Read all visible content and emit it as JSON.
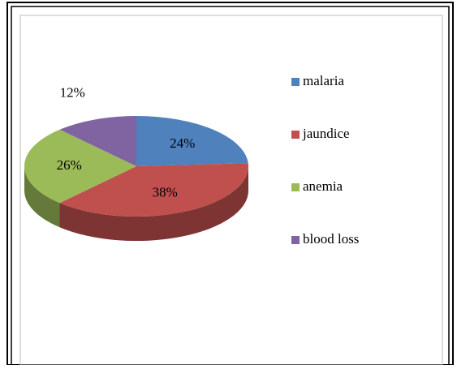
{
  "chart_data": {
    "type": "pie",
    "categories": [
      "malaria",
      "jaundice",
      "anemia",
      "blood loss"
    ],
    "values": [
      24,
      38,
      26,
      12
    ],
    "value_labels": [
      "24%",
      "38%",
      "26%",
      "12%"
    ],
    "colors": [
      "#4f81bd",
      "#c0504d",
      "#9bbb59",
      "#8064a2"
    ],
    "legend": "right"
  }
}
